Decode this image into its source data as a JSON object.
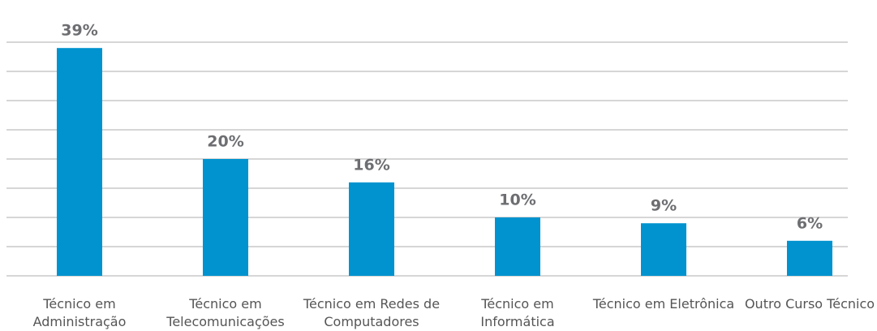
{
  "chart_data": {
    "type": "bar",
    "categories": [
      "Técnico em Administração",
      "Técnico em Telecomunicações",
      "Técnico em Redes de Computadores",
      "Técnico em Informática",
      "Técnico em Eletrônica",
      "Outro Curso Técnico"
    ],
    "values": [
      39,
      20,
      16,
      10,
      9,
      6
    ],
    "value_labels": [
      "39%",
      "20%",
      "16%",
      "10%",
      "9%",
      "6%"
    ],
    "color": "#0093cf",
    "ylim": [
      0,
      40
    ],
    "yticks": [
      0,
      5,
      10,
      15,
      20,
      25,
      30,
      35,
      40
    ],
    "grid": true
  }
}
